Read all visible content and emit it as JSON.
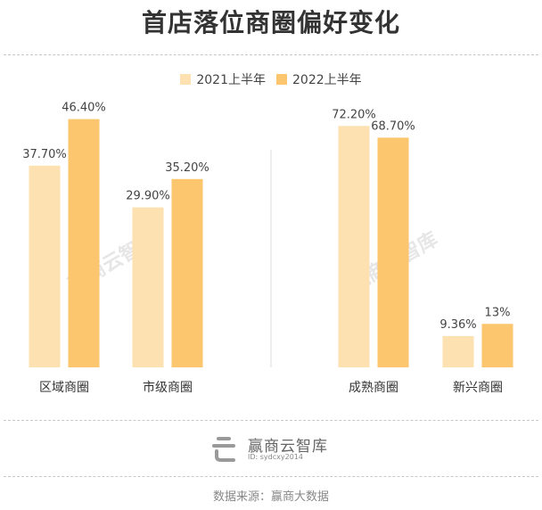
{
  "header": {
    "title": "首店落位商圈偏好变化"
  },
  "colors": {
    "series_2021": "#fde1b0",
    "series_2022": "#fcc66e",
    "watermark": "#e6e6e6"
  },
  "watermark": {
    "text": "赢商云智库"
  },
  "chart_data": {
    "type": "bar",
    "title": "首店落位商圈偏好变化",
    "categories": [
      "区域商圈",
      "市级商圈",
      "成熟商圈",
      "新兴商圈"
    ],
    "series": [
      {
        "name": "2021上半年",
        "values": [
          37.7,
          29.9,
          72.2,
          9.36
        ],
        "labels": [
          "37.70%",
          "29.90%",
          "72.20%",
          "9.36%"
        ]
      },
      {
        "name": "2022上半年",
        "values": [
          46.4,
          35.2,
          68.7,
          13
        ],
        "labels": [
          "46.40%",
          "35.20%",
          "68.70%",
          "13%"
        ]
      }
    ],
    "groups": [
      {
        "categories": [
          "区域商圈",
          "市级商圈"
        ],
        "ylim": [
          0,
          50
        ]
      },
      {
        "categories": [
          "成熟商圈",
          "新兴商圈"
        ],
        "ylim": [
          0,
          80
        ]
      }
    ],
    "legend": "top-center",
    "grid": false
  },
  "footer": {
    "logo_name": "赢商云智库",
    "logo_id": "ID: sydcxy2014",
    "source": "数据来源：赢商大数据"
  }
}
